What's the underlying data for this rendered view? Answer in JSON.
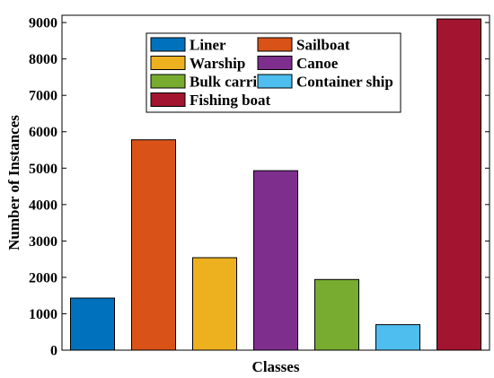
{
  "chart_data": {
    "type": "bar",
    "categories": [
      "Liner",
      "Sailboat",
      "Warship",
      "Canoe",
      "Bulk carrier",
      "Container ship",
      "Fishing boat"
    ],
    "values": [
      1430,
      5780,
      2540,
      4930,
      1940,
      700,
      9100
    ],
    "colors": [
      "#0072BD",
      "#D95319",
      "#EDB120",
      "#7E2F8E",
      "#77AC30",
      "#4DBEEE",
      "#A2142F"
    ],
    "xlabel": "Classes",
    "ylabel": "Number of Instances",
    "ylim": [
      0,
      9200
    ],
    "yticks": [
      0,
      1000,
      2000,
      3000,
      4000,
      5000,
      6000,
      7000,
      8000,
      9000
    ],
    "grid": false,
    "legend_position": "top-center"
  }
}
